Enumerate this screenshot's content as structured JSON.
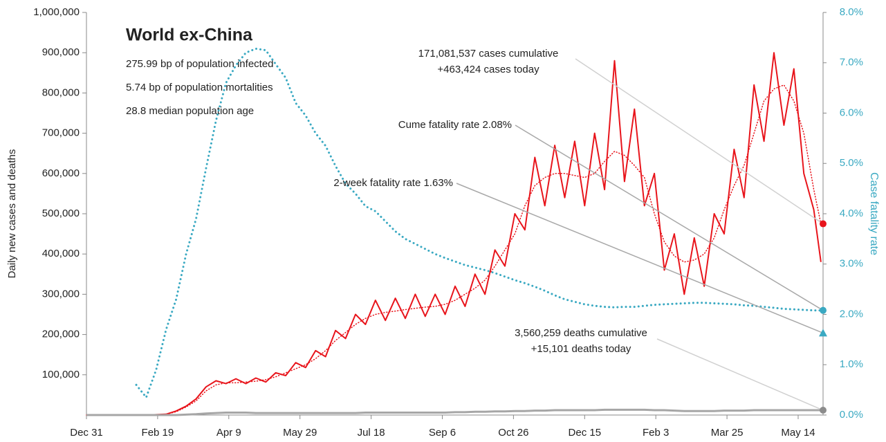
{
  "chart_data": {
    "type": "line",
    "title": "World ex-China",
    "subtitle_lines": [
      "275.99 bp of population infected",
      "5.74 bp of population mortalities",
      "28.8 median population age"
    ],
    "ylabel": "Daily new cases and deaths",
    "y2label": "Case fatality rate",
    "x": [
      0,
      7,
      14,
      21,
      28,
      35,
      42,
      49,
      56,
      63,
      70,
      77,
      84,
      91,
      98,
      105,
      112,
      119,
      126,
      133,
      140,
      147,
      154,
      161,
      168,
      175,
      182,
      189,
      196,
      203,
      210,
      217,
      224,
      231,
      238,
      245,
      252,
      259,
      266,
      273,
      280,
      287,
      294,
      301,
      308,
      315,
      322,
      329,
      336,
      343,
      350,
      357,
      364,
      371,
      378,
      385,
      392,
      399,
      406,
      413,
      420,
      427,
      434,
      441,
      448,
      455,
      462,
      469,
      476,
      483,
      490,
      497,
      504,
      511,
      516
    ],
    "xlim": [
      0,
      517.5
    ],
    "xticks": [
      {
        "value": 0,
        "label": "Dec 31"
      },
      {
        "value": 50,
        "label": "Feb 19"
      },
      {
        "value": 100,
        "label": "Apr 9"
      },
      {
        "value": 150,
        "label": "May 29"
      },
      {
        "value": 200,
        "label": "Jul 18"
      },
      {
        "value": 250,
        "label": "Sep 6"
      },
      {
        "value": 300,
        "label": "Oct 26"
      },
      {
        "value": 350,
        "label": "Dec 15"
      },
      {
        "value": 400,
        "label": "Feb 3"
      },
      {
        "value": 450,
        "label": "Mar 25"
      },
      {
        "value": 500,
        "label": "May 14"
      }
    ],
    "ylim": [
      0,
      1000000
    ],
    "yticks": [
      {
        "value": 100000,
        "label": "100,000"
      },
      {
        "value": 200000,
        "label": "200,000"
      },
      {
        "value": 300000,
        "label": "300,000"
      },
      {
        "value": 400000,
        "label": "400,000"
      },
      {
        "value": 500000,
        "label": "500,000"
      },
      {
        "value": 600000,
        "label": "600,000"
      },
      {
        "value": 700000,
        "label": "700,000"
      },
      {
        "value": 800000,
        "label": "800,000"
      },
      {
        "value": 900000,
        "label": "900,000"
      },
      {
        "value": 1000000,
        "label": "1,000,000"
      }
    ],
    "y2lim": [
      0,
      8
    ],
    "y2ticks": [
      {
        "value": 0,
        "label": "0.0%"
      },
      {
        "value": 1,
        "label": "1.0%"
      },
      {
        "value": 2,
        "label": "2.0%"
      },
      {
        "value": 3,
        "label": "3.0%"
      },
      {
        "value": 4,
        "label": "4.0%"
      },
      {
        "value": 5,
        "label": "5.0%"
      },
      {
        "value": 6,
        "label": "6.0%"
      },
      {
        "value": 7,
        "label": "7.0%"
      },
      {
        "value": 8,
        "label": "8.0%"
      }
    ],
    "grid": false,
    "series": [
      {
        "color": "#e8141b",
        "style": "solid",
        "values": [
          0,
          0,
          0,
          0,
          0,
          0,
          0,
          1000,
          2000,
          10000,
          22000,
          40000,
          70000,
          85000,
          78000,
          90000,
          78000,
          92000,
          82000,
          105000,
          98000,
          130000,
          118000,
          160000,
          145000,
          210000,
          190000,
          250000,
          225000,
          285000,
          235000,
          290000,
          240000,
          300000,
          245000,
          300000,
          250000,
          320000,
          270000,
          350000,
          300000,
          410000,
          370000,
          500000,
          460000,
          640000,
          520000,
          670000,
          540000,
          680000,
          520000,
          700000,
          560000,
          880000,
          580000,
          760000,
          520000,
          600000,
          360000,
          450000,
          300000,
          440000,
          320000,
          500000,
          450000,
          660000,
          540000,
          820000,
          680000,
          900000,
          720000,
          860000,
          600000,
          510000,
          380000
        ]
      },
      {
        "color": "#e8141b",
        "style": "dotted",
        "values": [
          0,
          0,
          0,
          0,
          0,
          0,
          0,
          1000,
          2000,
          8000,
          20000,
          35000,
          60000,
          75000,
          80000,
          80000,
          82000,
          84000,
          88000,
          95000,
          105000,
          115000,
          125000,
          140000,
          160000,
          185000,
          205000,
          225000,
          240000,
          250000,
          255000,
          258000,
          262000,
          265000,
          268000,
          270000,
          275000,
          285000,
          300000,
          315000,
          335000,
          370000,
          410000,
          450000,
          520000,
          570000,
          590000,
          600000,
          600000,
          595000,
          590000,
          600000,
          630000,
          655000,
          645000,
          620000,
          590000,
          500000,
          430000,
          395000,
          380000,
          385000,
          400000,
          440000,
          510000,
          570000,
          620000,
          700000,
          780000,
          810000,
          820000,
          780000,
          700000,
          560000,
          475000
        ]
      },
      {
        "color": "#a6a6a6",
        "style": "solid",
        "values": [
          0,
          0,
          0,
          0,
          0,
          0,
          0,
          0,
          0,
          0,
          1000,
          2000,
          4000,
          5000,
          6000,
          6000,
          6000,
          5000,
          5000,
          5000,
          5000,
          5000,
          5000,
          5000,
          5000,
          5000,
          5000,
          5000,
          6000,
          6000,
          6000,
          6000,
          6000,
          6000,
          6000,
          6000,
          6000,
          7000,
          7000,
          8000,
          8000,
          9000,
          9000,
          10000,
          10000,
          11000,
          11000,
          12000,
          12000,
          12000,
          12000,
          12000,
          13000,
          13000,
          13000,
          13000,
          13000,
          12000,
          12000,
          11000,
          10000,
          10000,
          10000,
          10000,
          11000,
          11000,
          11000,
          12000,
          12000,
          12000,
          12000,
          12000,
          12000,
          12000,
          12000
        ]
      },
      {
        "color": "#3aa9c2",
        "style": "dotted",
        "axis": "y2",
        "values": [
          null,
          null,
          null,
          null,
          null,
          0.6,
          0.35,
          0.9,
          1.7,
          2.3,
          3.2,
          3.9,
          4.9,
          5.85,
          6.6,
          6.95,
          7.2,
          7.28,
          7.25,
          6.97,
          6.7,
          6.2,
          5.95,
          5.6,
          5.35,
          4.95,
          4.6,
          4.4,
          4.15,
          4.05,
          3.85,
          3.65,
          3.5,
          3.4,
          3.3,
          3.2,
          3.12,
          3.05,
          2.98,
          2.93,
          2.88,
          2.82,
          2.75,
          2.68,
          2.62,
          2.55,
          2.47,
          2.38,
          2.3,
          2.25,
          2.2,
          2.17,
          2.15,
          2.14,
          2.15,
          2.15,
          2.17,
          2.19,
          2.2,
          2.21,
          2.22,
          2.23,
          2.23,
          2.22,
          2.21,
          2.2,
          2.18,
          2.17,
          2.15,
          2.13,
          2.11,
          2.1,
          2.09,
          2.08,
          2.08
        ]
      }
    ],
    "annotations": [
      {
        "lines": [
          "171,081,537 cases cumulative",
          "+463,424 cases today"
        ],
        "value": 475000,
        "marker": "circle",
        "color": "#e8141b"
      },
      {
        "lines": [
          "Cume fatality rate 2.08%"
        ],
        "value": 2.08,
        "axis": "y2",
        "marker": "circle",
        "color": "#3aa9c2"
      },
      {
        "lines": [
          "2-week fatality rate 1.63%"
        ],
        "value": 1.63,
        "axis": "y2",
        "marker": "triangle",
        "color": "#3aa9c2"
      },
      {
        "lines": [
          "3,560,259 deaths cumulative",
          "+15,101 deaths today"
        ],
        "value": 12000,
        "marker": "circle",
        "color": "#8c8c8c"
      }
    ]
  }
}
